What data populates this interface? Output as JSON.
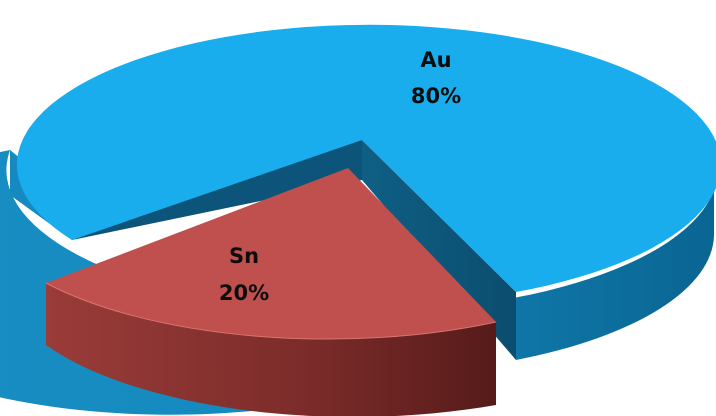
{
  "chart_data": {
    "type": "pie",
    "three_d": true,
    "title": "",
    "legend": "none",
    "slices": [
      {
        "label": "Au",
        "value": 80,
        "percent_label": "80%",
        "color": "#1aadee",
        "exploded": false
      },
      {
        "label": "Sn",
        "value": 20,
        "percent_label": "20%",
        "color": "#c0504d",
        "exploded": true
      }
    ]
  }
}
